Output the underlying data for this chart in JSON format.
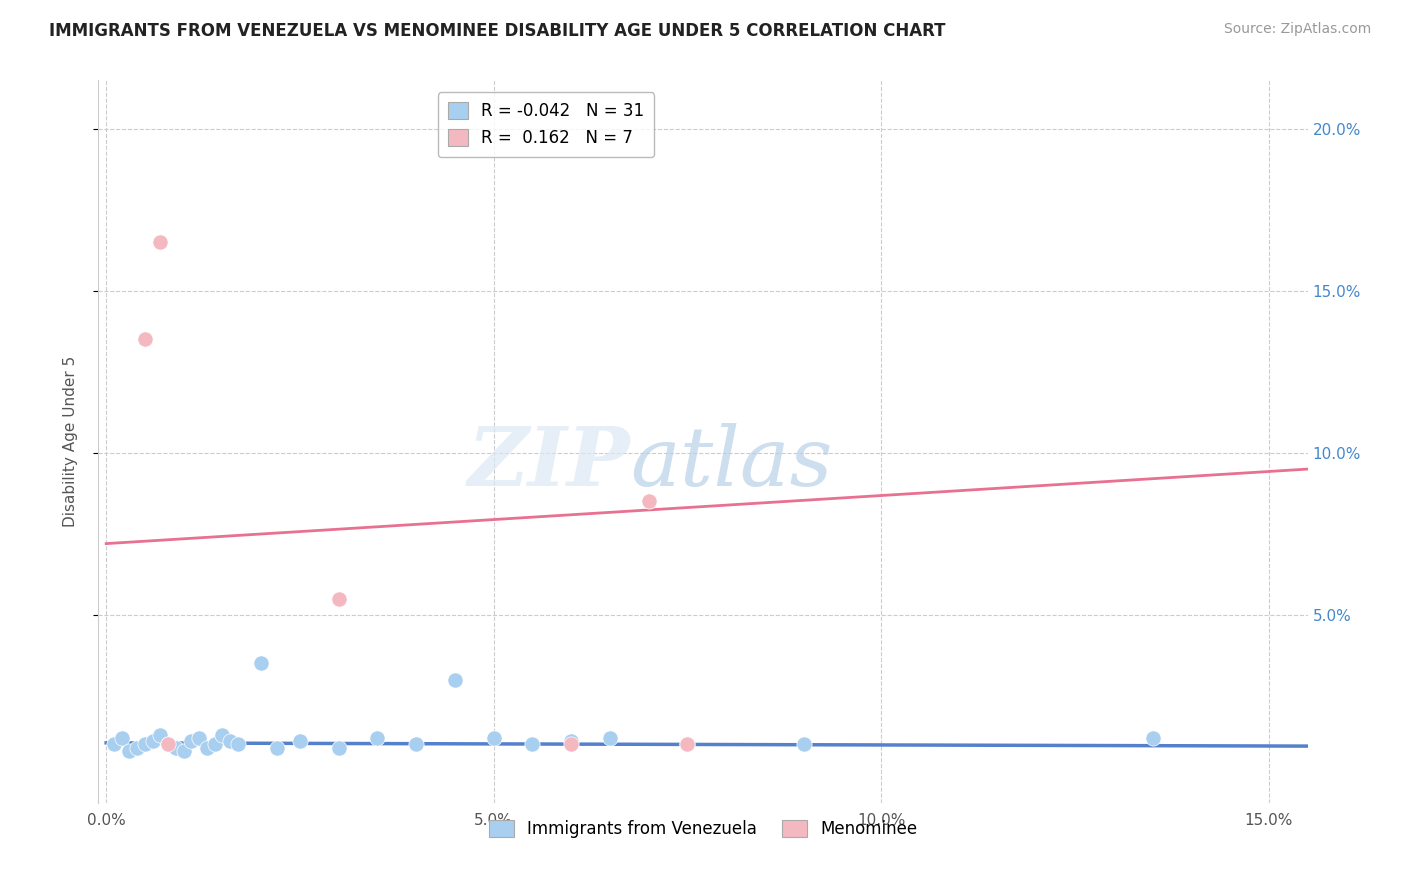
{
  "title": "IMMIGRANTS FROM VENEZUELA VS MENOMINEE DISABILITY AGE UNDER 5 CORRELATION CHART",
  "source": "Source: ZipAtlas.com",
  "ylabel": "Disability Age Under 5",
  "xlim": [
    -0.001,
    0.155
  ],
  "ylim": [
    -0.008,
    0.215
  ],
  "xticks": [
    0.0,
    0.05,
    0.1,
    0.15
  ],
  "xtick_labels": [
    "0.0%",
    "5.0%",
    "10.0%",
    "15.0%"
  ],
  "yticks_right": [
    0.05,
    0.1,
    0.15,
    0.2
  ],
  "ytick_labels_right": [
    "5.0%",
    "10.0%",
    "15.0%",
    "20.0%"
  ],
  "blue_R": -0.042,
  "blue_N": 31,
  "pink_R": 0.162,
  "pink_N": 7,
  "blue_color": "#a8cff0",
  "pink_color": "#f4b8c0",
  "blue_line_color": "#5580cc",
  "pink_line_color": "#e87090",
  "right_axis_color": "#4488cc",
  "blue_scatter_x": [
    0.001,
    0.002,
    0.003,
    0.004,
    0.005,
    0.006,
    0.007,
    0.008,
    0.009,
    0.01,
    0.011,
    0.012,
    0.013,
    0.014,
    0.015,
    0.016,
    0.017,
    0.02,
    0.022,
    0.025,
    0.03,
    0.035,
    0.04,
    0.045,
    0.05,
    0.055,
    0.06,
    0.065,
    0.075,
    0.09,
    0.135
  ],
  "blue_scatter_y": [
    0.01,
    0.012,
    0.008,
    0.009,
    0.01,
    0.011,
    0.013,
    0.01,
    0.009,
    0.008,
    0.011,
    0.012,
    0.009,
    0.01,
    0.013,
    0.011,
    0.01,
    0.035,
    0.009,
    0.011,
    0.009,
    0.012,
    0.01,
    0.03,
    0.012,
    0.01,
    0.011,
    0.012,
    0.01,
    0.01,
    0.012
  ],
  "pink_scatter_x": [
    0.005,
    0.007,
    0.008,
    0.03,
    0.06,
    0.07,
    0.075
  ],
  "pink_scatter_y": [
    0.135,
    0.165,
    0.01,
    0.055,
    0.01,
    0.085,
    0.01
  ],
  "blue_trend_x": [
    0.0,
    0.155
  ],
  "blue_trend_y": [
    0.0105,
    0.0095
  ],
  "pink_trend_x": [
    0.0,
    0.155
  ],
  "pink_trend_y": [
    0.072,
    0.095
  ]
}
